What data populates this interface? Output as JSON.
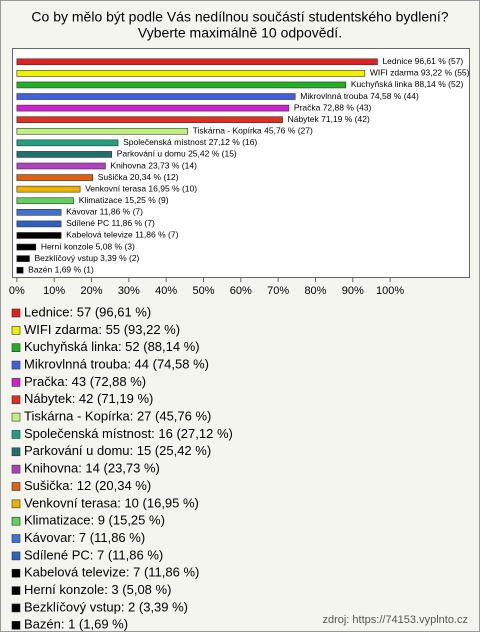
{
  "chart_data": {
    "type": "bar",
    "orientation": "horizontal",
    "title": "Co by mělo být podle Vás nedílnou součástí studentského bydlení?",
    "subtitle": "Vyberte maximálně 10 odpovědí.",
    "values": [
      96.61,
      93.22,
      88.14,
      74.58,
      72.88,
      71.19,
      45.76,
      27.12,
      25.42,
      23.73,
      20.34,
      16.95,
      15.25,
      11.86,
      11.86,
      11.86,
      5.08,
      3.39,
      1.69
    ],
    "value_labels": [
      "Lednice 96,61 % (57)",
      "WIFI zdarma 93,22 % (55)",
      "Kuchyňská linka 88,14 % (52)",
      "Mikrovlnná trouba 74,58 % (44)",
      "Pračka 72,88 % (43)",
      "Nábytek 71,19 % (42)",
      "Tiskárna - Kopírka 45,76 % (27)",
      "Společenská místnost 27,12 % (16)",
      "Parkování u domu 25,42 % (15)",
      "Knihovna 23,73 % (14)",
      "Sušička 20,34 % (12)",
      "Venkovní terasa 16,95 % (10)",
      "Klimatizace 15,25 % (9)",
      "Kávovar 11,86 % (7)",
      "Sdílené PC 11,86 % (7)",
      "Kabelová televize 11,86 % (7)",
      "Herní konzole 5,08 % (3)",
      "Bezklíčový vstup 3,39 % (2)",
      "Bazén 1,69 % (1)"
    ],
    "legend_labels": [
      "Lednice: 57 (96,61 %)",
      "WIFI zdarma: 55 (93,22 %)",
      "Kuchyňská linka: 52 (88,14 %)",
      "Mikrovlnná trouba: 44 (74,58 %)",
      "Pračka: 43 (72,88 %)",
      "Nábytek: 42 (71,19 %)",
      "Tiskárna - Kopírka: 27 (45,76 %)",
      "Společenská místnost: 16 (27,12 %)",
      "Parkování u domu: 15 (25,42 %)",
      "Knihovna: 14 (23,73 %)",
      "Sušička: 12 (20,34 %)",
      "Venkovní terasa: 10 (16,95 %)",
      "Klimatizace: 9 (15,25 %)",
      "Kávovar: 7 (11,86 %)",
      "Sdílené PC: 7 (11,86 %)",
      "Kabelová televize: 7 (11,86 %)",
      "Herní konzole: 3 (5,08 %)",
      "Bezklíčový vstup: 2 (3,39 %)",
      "Bazén: 1 (1,69 %)"
    ],
    "colors": [
      "#e02020",
      "#f0f000",
      "#20b020",
      "#4060e0",
      "#d020d0",
      "#e03020",
      "#c0f080",
      "#20a080",
      "#207070",
      "#b040c0",
      "#e06010",
      "#f0b000",
      "#60d060",
      "#4070d0",
      "#3060c0",
      "#000000",
      "#000000",
      "#000000",
      "#000000"
    ],
    "xlim": [
      -1.3,
      121.4
    ],
    "xticks": [
      {
        "value": 0,
        "label": "0%"
      },
      {
        "value": 10,
        "label": "10%"
      },
      {
        "value": 20,
        "label": "20%"
      },
      {
        "value": 30,
        "label": "30%"
      },
      {
        "value": 40,
        "label": "40%"
      },
      {
        "value": 50,
        "label": "50%"
      },
      {
        "value": 60,
        "label": "60%"
      },
      {
        "value": 70,
        "label": "70%"
      },
      {
        "value": 80,
        "label": "80%"
      },
      {
        "value": 90,
        "label": "90%"
      },
      {
        "value": 100,
        "label": "100%"
      }
    ],
    "source": "zdroj: https://74153.vyplnto.cz"
  }
}
